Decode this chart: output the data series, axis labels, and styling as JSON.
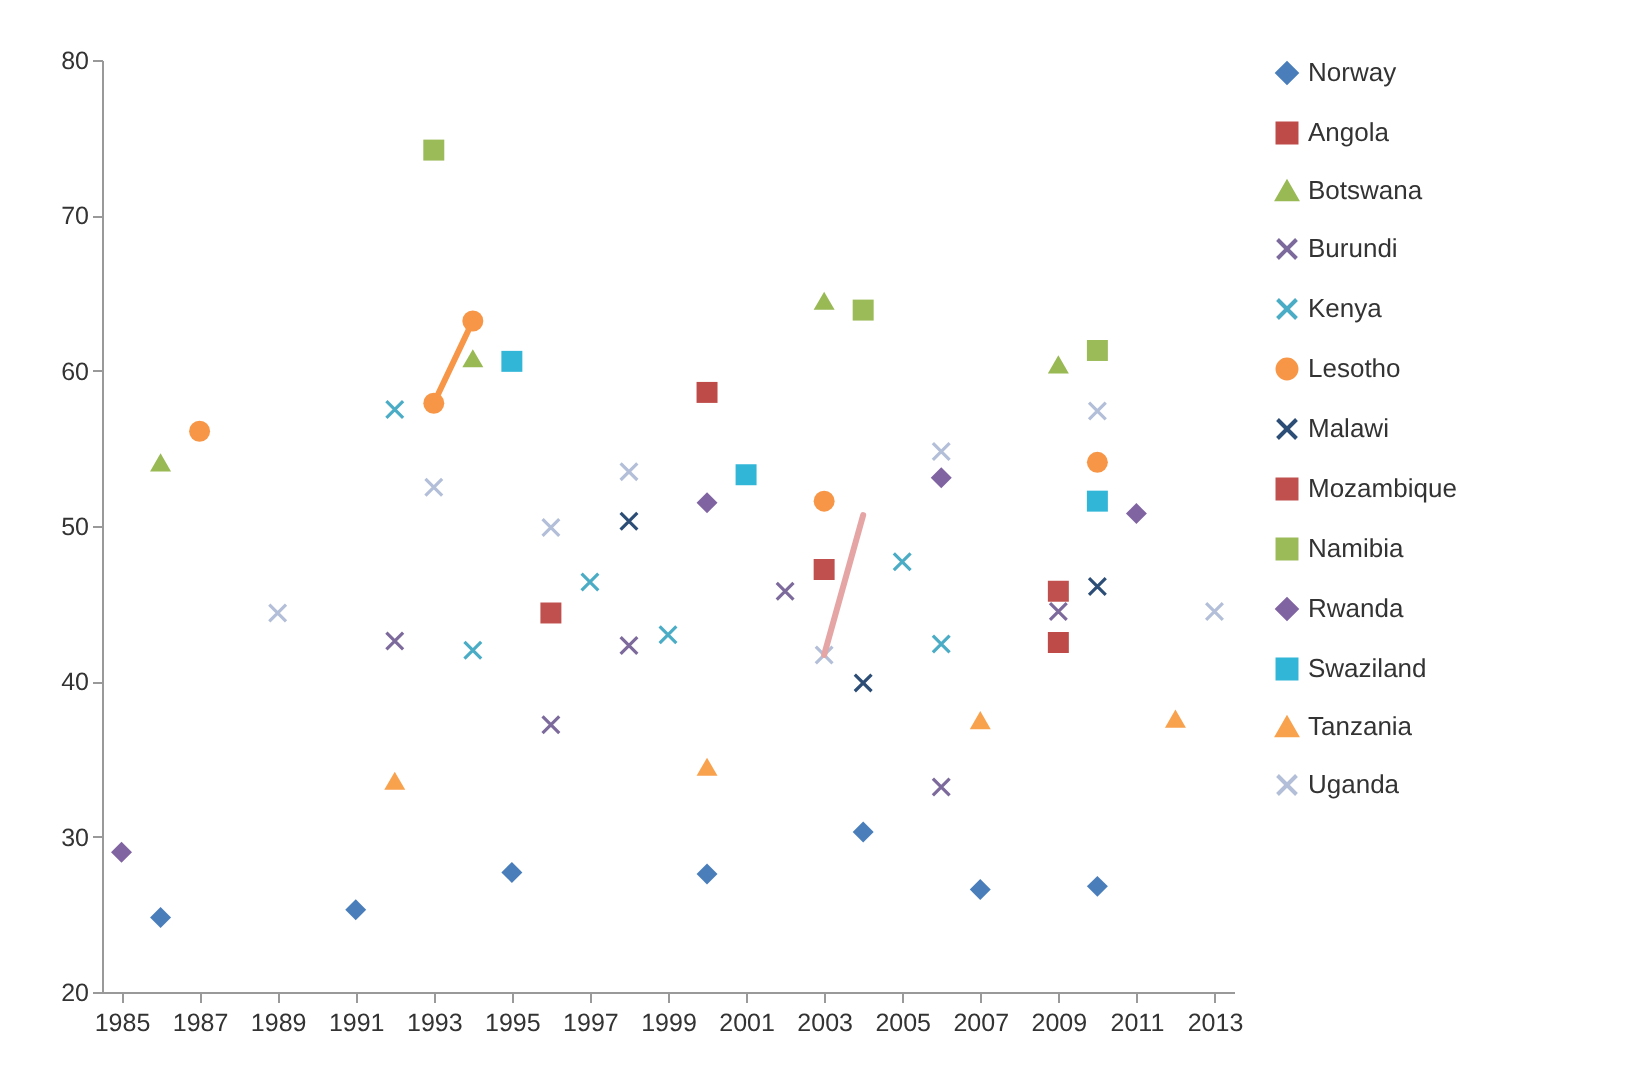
{
  "chart_data": {
    "type": "scatter",
    "xlim": [
      1984.5,
      2013.5
    ],
    "xticks": [
      1985,
      1987,
      1989,
      1991,
      1993,
      1995,
      1997,
      1999,
      2001,
      2003,
      2005,
      2007,
      2009,
      2011,
      2013
    ],
    "ylim": [
      20,
      80
    ],
    "yticks": [
      20,
      30,
      40,
      50,
      60,
      70,
      80
    ],
    "grid": false,
    "legend": "right",
    "series": [
      {
        "name": "Norway",
        "color": "#4a7ebb",
        "marker": "diamond",
        "x": [
          1986,
          1991,
          1995,
          2000,
          2004,
          2007,
          2010
        ],
        "values": [
          24.8,
          25.3,
          27.7,
          27.6,
          30.3,
          26.6,
          26.8
        ]
      },
      {
        "name": "Angola",
        "color": "#be4b48",
        "marker": "square",
        "x": [
          2000,
          2009
        ],
        "values": [
          58.6,
          42.5
        ]
      },
      {
        "name": "Botswana",
        "color": "#98b954",
        "marker": "triangle",
        "x": [
          1986,
          1994,
          2003,
          2009
        ],
        "values": [
          54.1,
          60.8,
          64.5,
          60.4
        ]
      },
      {
        "name": "Burundi",
        "color": "#7d6a9c",
        "marker": "cross",
        "x": [
          1992,
          1996,
          1998,
          2002,
          2006,
          2009
        ],
        "values": [
          42.6,
          37.2,
          42.3,
          45.8,
          33.2,
          44.5
        ]
      },
      {
        "name": "Kenya",
        "color": "#4bacc6",
        "marker": "cross",
        "x": [
          1992,
          1994,
          1997,
          1999,
          2005,
          2006
        ],
        "values": [
          57.5,
          42.0,
          46.4,
          43.0,
          47.7,
          42.4
        ]
      },
      {
        "name": "Lesotho",
        "color": "#f79646",
        "marker": "circle",
        "x": [
          1987,
          1993,
          1994,
          2003,
          2010
        ],
        "values": [
          56.1,
          57.9,
          63.2,
          51.6,
          54.1
        ]
      },
      {
        "name": "Malawi",
        "color": "#2c4d75",
        "marker": "cross",
        "x": [
          1998,
          2004,
          2010
        ],
        "values": [
          50.3,
          39.9,
          46.1
        ]
      },
      {
        "name": "Mozambique",
        "color": "#c0504d",
        "marker": "square",
        "x": [
          1996,
          2003,
          2009
        ],
        "values": [
          44.4,
          47.2,
          45.8
        ]
      },
      {
        "name": "Namibia",
        "color": "#9bbb59",
        "marker": "square",
        "x": [
          1993,
          2004,
          2010
        ],
        "values": [
          74.2,
          63.9,
          61.3
        ]
      },
      {
        "name": "Rwanda",
        "color": "#8064a2",
        "marker": "diamond",
        "x": [
          1985,
          2000,
          2006,
          2011
        ],
        "values": [
          29.0,
          51.5,
          53.1,
          50.8
        ]
      },
      {
        "name": "Swaziland",
        "color": "#31b6d8",
        "marker": "square",
        "x": [
          1995,
          2001,
          2010
        ],
        "values": [
          60.6,
          53.3,
          51.6
        ]
      },
      {
        "name": "Tanzania",
        "color": "#f9a24e",
        "marker": "triangle",
        "x": [
          1992,
          2000,
          2007,
          2012
        ],
        "values": [
          33.6,
          34.5,
          37.5,
          37.6
        ]
      },
      {
        "name": "Uganda",
        "color": "#b3bfd8",
        "marker": "cross",
        "x": [
          1989,
          1993,
          1996,
          1998,
          2003,
          2006,
          2010,
          2013
        ],
        "values": [
          44.4,
          52.5,
          49.9,
          53.5,
          41.7,
          54.8,
          57.4,
          44.5
        ]
      },
      {
        "type": "line",
        "color": "#f79646",
        "x": [
          1993,
          1994
        ],
        "values": [
          57.9,
          63.2
        ]
      },
      {
        "type": "line",
        "color": "#e6a5a5",
        "x": [
          2003,
          2004
        ],
        "values": [
          41.7,
          50.7
        ]
      }
    ]
  }
}
